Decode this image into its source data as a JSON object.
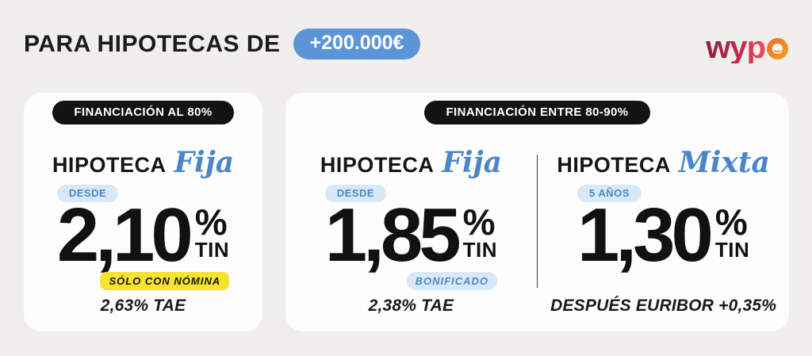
{
  "header": {
    "title": "PARA HIPOTECAS DE",
    "amount_badge": "+200.000€",
    "logo_text": "wyp",
    "logo_name": "wypo"
  },
  "colors": {
    "background": "#f0efee",
    "accent_blue": "#5b95d6",
    "light_blue_pill": "#d9e8f7",
    "blue_text": "#4b87c9",
    "yellow_tag": "#f7e32e",
    "badge_black": "#131313",
    "logo_gradient_start": "#8c1e3d",
    "logo_gradient_end": "#f9a01b"
  },
  "cards": [
    {
      "badge": "FINANCIACIÓN AL 80%",
      "columns": [
        {
          "product": "HIPOTECA",
          "variant": "Fija",
          "pill": "DESDE",
          "rate": "2,10",
          "percent": "%",
          "unit": "TIN",
          "tag": "SÓLO CON NÓMINA",
          "footnote": "2,63% TAE"
        }
      ]
    },
    {
      "badge": "FINANCIACIÓN ENTRE 80-90%",
      "columns": [
        {
          "product": "HIPOTECA",
          "variant": "Fija",
          "pill": "DESDE",
          "rate": "1,85",
          "percent": "%",
          "unit": "TIN",
          "tag": "BONIFICADO",
          "footnote": "2,38% TAE"
        },
        {
          "product": "HIPOTECA",
          "variant": "Mixta",
          "pill": "5 AÑOS",
          "rate": "1,30",
          "percent": "%",
          "unit": "TIN",
          "footnote": "DESPUÉS EURIBOR +0,35%"
        }
      ]
    }
  ]
}
